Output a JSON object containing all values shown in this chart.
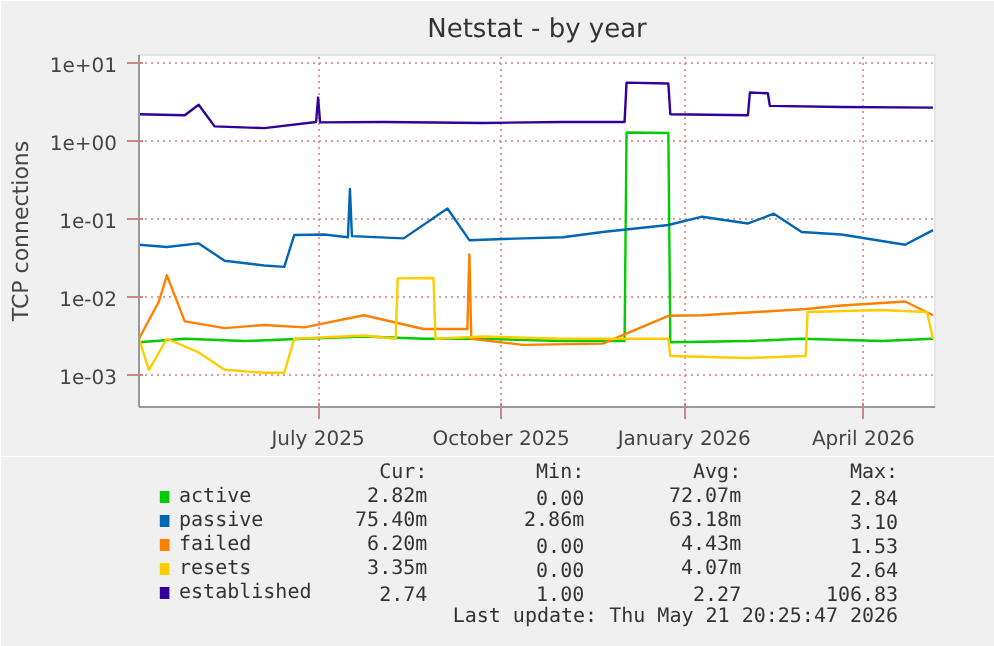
{
  "chart_data": {
    "type": "line",
    "title": "Netstat - by year",
    "ylabel": "TCP connections",
    "log": true,
    "xlim": [
      "2025-04-17",
      "2026-05-22"
    ],
    "xticks": [
      {
        "value": "2025-07-16",
        "label": "July 2025"
      },
      {
        "value": "2025-10-16",
        "label": "October 2025"
      },
      {
        "value": "2026-01-16",
        "label": "January 2026"
      },
      {
        "value": "2026-04-16",
        "label": "April 2026"
      }
    ],
    "ylim": [
      0.0004,
      13
    ],
    "yticks": [
      {
        "value": 0.001,
        "label": "1e-03"
      },
      {
        "value": 0.01,
        "label": "1e-02"
      },
      {
        "value": 0.1,
        "label": "1e-01"
      },
      {
        "value": 1,
        "label": "1e+00"
      },
      {
        "value": 10,
        "label": "1e+01"
      }
    ],
    "grid": true,
    "legend": "bottom",
    "series": [
      {
        "name": "active",
        "color": "#00cc00",
        "x": [
          "2025-04-17",
          "2025-05-10",
          "2025-06-09",
          "2025-07-09",
          "2025-08-08",
          "2025-09-07",
          "2025-10-07",
          "2025-11-16",
          "2025-12-17",
          "2025-12-18",
          "2026-01-08",
          "2026-01-09",
          "2026-02-17",
          "2026-03-16",
          "2026-04-25",
          "2026-05-21"
        ],
        "values": [
          0.0027,
          0.003,
          0.0028,
          0.003,
          0.0032,
          0.003,
          0.003,
          0.0028,
          0.0028,
          1.32,
          1.3,
          0.0027,
          0.0028,
          0.003,
          0.0028,
          0.003
        ]
      },
      {
        "name": "passive",
        "color": "#0066b3",
        "x": [
          "2025-04-17",
          "2025-05-01",
          "2025-05-17",
          "2025-05-30",
          "2025-06-19",
          "2025-06-29",
          "2025-07-04",
          "2025-07-19",
          "2025-07-31",
          "2025-08-01",
          "2025-08-02",
          "2025-08-28",
          "2025-09-19",
          "2025-09-30",
          "2025-10-27",
          "2025-11-16",
          "2025-12-06",
          "2026-01-08",
          "2026-01-25",
          "2026-02-17",
          "2026-03-02",
          "2026-03-16",
          "2026-04-05",
          "2026-05-07",
          "2026-05-21"
        ],
        "values": [
          0.048,
          0.045,
          0.05,
          0.03,
          0.026,
          0.025,
          0.064,
          0.065,
          0.06,
          0.25,
          0.062,
          0.058,
          0.14,
          0.055,
          0.058,
          0.06,
          0.07,
          0.086,
          0.11,
          0.09,
          0.12,
          0.07,
          0.065,
          0.048,
          0.074
        ]
      },
      {
        "name": "failed",
        "color": "#ff8000",
        "x": [
          "2025-04-17",
          "2025-04-27",
          "2025-05-01",
          "2025-05-10",
          "2025-05-30",
          "2025-06-19",
          "2025-07-09",
          "2025-08-08",
          "2025-09-07",
          "2025-09-29",
          "2025-09-30",
          "2025-10-01",
          "2025-10-27",
          "2025-12-06",
          "2026-01-08",
          "2026-01-25",
          "2026-03-18",
          "2026-04-05",
          "2026-05-07",
          "2026-05-21"
        ],
        "values": [
          0.003,
          0.009,
          0.0195,
          0.005,
          0.0041,
          0.0045,
          0.0042,
          0.006,
          0.004,
          0.004,
          0.036,
          0.003,
          0.0025,
          0.0026,
          0.0059,
          0.006,
          0.0072,
          0.008,
          0.009,
          0.006
        ]
      },
      {
        "name": "resets",
        "color": "#ffcc00",
        "x": [
          "2025-04-17",
          "2025-04-22",
          "2025-05-01",
          "2025-05-17",
          "2025-05-30",
          "2025-06-19",
          "2025-06-29",
          "2025-07-04",
          "2025-08-08",
          "2025-08-24",
          "2025-08-25",
          "2025-09-12",
          "2025-09-13",
          "2025-10-07",
          "2025-11-16",
          "2026-01-08",
          "2026-01-09",
          "2026-02-17",
          "2026-03-18",
          "2026-03-19",
          "2026-04-25",
          "2026-05-18",
          "2026-05-21"
        ],
        "values": [
          0.003,
          0.0012,
          0.003,
          0.002,
          0.0012,
          0.0011,
          0.0011,
          0.003,
          0.0033,
          0.003,
          0.0178,
          0.018,
          0.003,
          0.0032,
          0.003,
          0.003,
          0.0018,
          0.0017,
          0.0018,
          0.0066,
          0.007,
          0.0066,
          0.003
        ]
      },
      {
        "name": "established",
        "color": "#330099",
        "x": [
          "2025-04-17",
          "2025-05-10",
          "2025-05-17",
          "2025-05-25",
          "2025-06-19",
          "2025-07-15",
          "2025-07-16",
          "2025-07-17",
          "2025-08-18",
          "2025-10-07",
          "2025-11-16",
          "2025-12-17",
          "2025-12-18",
          "2026-01-08",
          "2026-01-09",
          "2026-02-17",
          "2026-02-18",
          "2026-02-27",
          "2026-02-28",
          "2026-04-05",
          "2026-05-21"
        ],
        "values": [
          2.26,
          2.2,
          3.0,
          1.58,
          1.5,
          1.8,
          3.7,
          1.78,
          1.8,
          1.75,
          1.8,
          1.8,
          5.75,
          5.6,
          2.26,
          2.2,
          4.3,
          4.2,
          2.9,
          2.8,
          2.75
        ]
      }
    ],
    "annotations": [
      "Cur:",
      "Min:",
      "Avg:",
      "Max:",
      "2.82m",
      "0.00",
      "72.07m",
      "2.84",
      "75.40m",
      "2.86m",
      "63.18m",
      "3.10",
      "6.20m",
      "0.00",
      "4.43m",
      "1.53",
      "3.35m",
      "0.00",
      "4.07m",
      "2.64",
      "2.74",
      "1.00",
      "2.27",
      "106.83",
      "Last update: Thu May 21 20:25:47 2026"
    ]
  }
}
